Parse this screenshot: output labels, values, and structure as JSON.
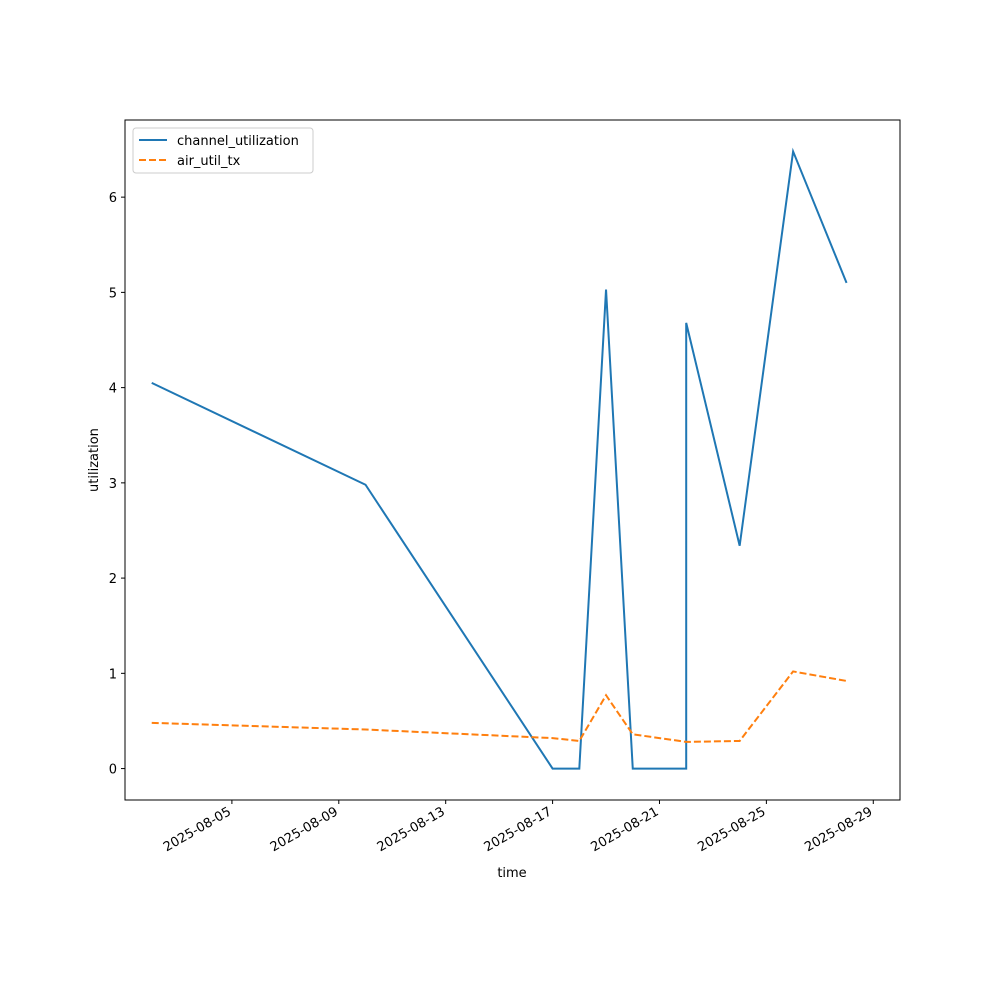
{
  "chart_data": {
    "type": "line",
    "x_label": "time",
    "y_label": "utilization",
    "x": [
      "2025-08-02",
      "2025-08-10",
      "2025-08-17",
      "2025-08-18",
      "2025-08-19",
      "2025-08-20",
      "2025-08-22",
      "2025-08-22",
      "2025-08-24",
      "2025-08-26",
      "2025-08-28"
    ],
    "series": [
      {
        "name": "channel_utilization",
        "color": "#1f77b4",
        "dash": "solid",
        "values": [
          4.05,
          2.98,
          0,
          0,
          5.03,
          0,
          0,
          4.68,
          2.34,
          6.48,
          5.1
        ]
      },
      {
        "name": "air_util_tx",
        "color": "#ff7f0e",
        "dash": "dashed",
        "values": [
          0.48,
          0.41,
          0.32,
          0.29,
          0.77,
          0.36,
          0.28,
          0.28,
          0.29,
          1.02,
          0.92
        ]
      }
    ],
    "xlim": [
      "2025-08-01",
      "2025-08-30"
    ],
    "xticks": [
      "2025-08-05",
      "2025-08-09",
      "2025-08-13",
      "2025-08-17",
      "2025-08-21",
      "2025-08-25",
      "2025-08-29"
    ],
    "ylim": [
      -0.33,
      6.81
    ],
    "yticks": [
      0,
      1,
      2,
      3,
      4,
      5,
      6
    ],
    "legend": "upper-left"
  }
}
